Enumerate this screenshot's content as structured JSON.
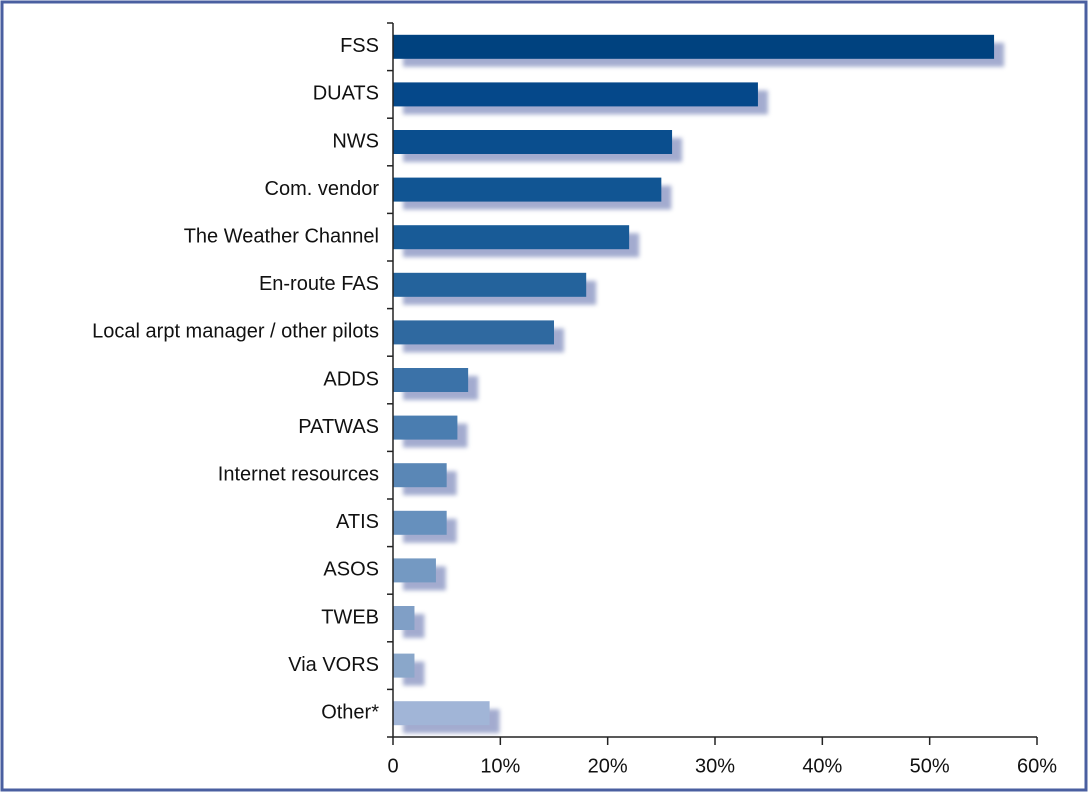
{
  "chart_data": {
    "type": "hbar",
    "categories": [
      "FSS",
      "DUATS",
      "NWS",
      "Com. vendor",
      "The Weather Channel",
      "En-route FAS",
      "Local arpt manager / other pilots",
      "ADDS",
      "PATWAS",
      "Internet resources",
      "ATIS",
      "ASOS",
      "TWEB",
      "Via VORS",
      "Other*"
    ],
    "values": [
      56,
      34,
      26,
      25,
      22,
      18,
      15,
      7,
      6,
      5,
      5,
      4,
      2,
      2,
      9
    ],
    "colors": [
      "#00427f",
      "#05488a",
      "#0a4e8e",
      "#115593",
      "#185b97",
      "#24639c",
      "#2f69a0",
      "#3b72a8",
      "#4a7db0",
      "#5a87b6",
      "#6690bd",
      "#7499c2",
      "#809fc6",
      "#8aa7ca",
      "#a1b5d7"
    ],
    "xlim": [
      0,
      60
    ],
    "xticks": [
      0,
      {
        "value": 10,
        "label": "10%"
      },
      {
        "value": 20,
        "label": "20%"
      },
      {
        "value": 30,
        "label": "30%"
      },
      {
        "value": 40,
        "label": "40%"
      },
      {
        "value": 50,
        "label": "50%"
      },
      {
        "value": 60,
        "label": "60%"
      }
    ]
  }
}
